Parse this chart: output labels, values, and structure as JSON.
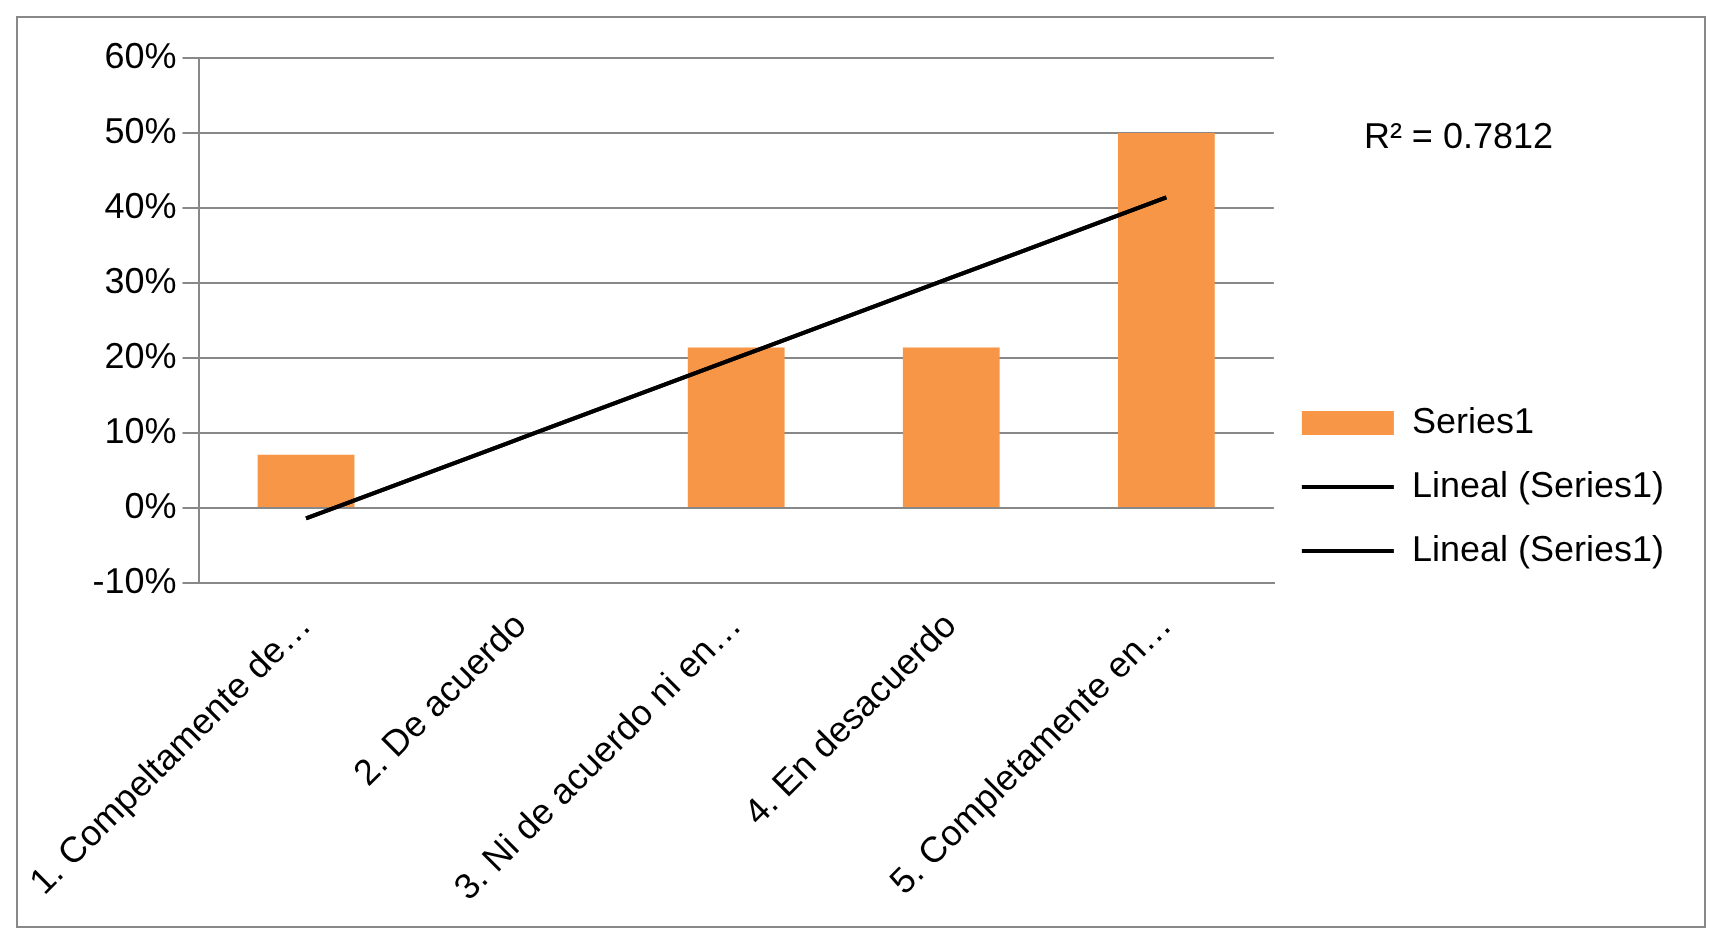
{
  "chart_data": {
    "type": "bar",
    "categories": [
      "1. Compeltamente de…",
      "2. De acuerdo",
      "3. Ni de acuerdo ni en…",
      "4. En desacuerdo",
      "5. Completamente en…"
    ],
    "series": [
      {
        "name": "Series1",
        "color": "#f79646",
        "values": [
          7.1,
          0,
          21.4,
          21.4,
          50
        ]
      },
      {
        "name": "Lineal (Series1)",
        "type": "line",
        "color": "#000000",
        "values": [
          -1.4,
          9.3,
          20,
          30.7,
          41.4
        ]
      },
      {
        "name": "Lineal (Series1)",
        "type": "line",
        "color": "#000000",
        "values": [
          -1.4,
          9.3,
          20,
          30.7,
          41.4
        ]
      }
    ],
    "ylim": [
      -10,
      60
    ],
    "yticks": [
      {
        "value": -10,
        "label": "-10%"
      },
      {
        "value": 0,
        "label": "0%"
      },
      {
        "value": 10,
        "label": "10%"
      },
      {
        "value": 20,
        "label": "20%"
      },
      {
        "value": 30,
        "label": "30%"
      },
      {
        "value": 40,
        "label": "40%"
      },
      {
        "value": 50,
        "label": "50%"
      },
      {
        "value": 60,
        "label": "60%"
      }
    ],
    "annotations": [
      "R² = 0.7812"
    ],
    "grid": "y",
    "legend": "right",
    "marker": "none"
  }
}
